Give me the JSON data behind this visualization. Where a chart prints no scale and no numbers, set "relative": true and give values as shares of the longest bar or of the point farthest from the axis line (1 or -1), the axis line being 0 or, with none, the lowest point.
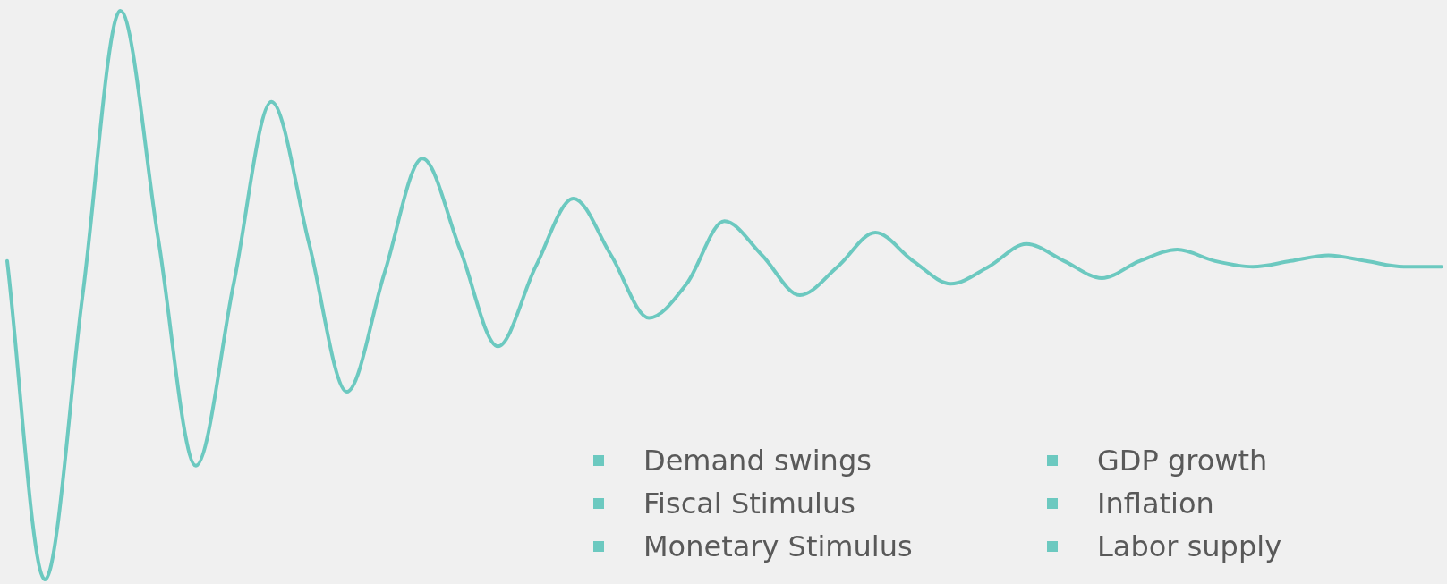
{
  "chart_data": {
    "type": "line",
    "relative": true,
    "legend": false,
    "marker": "none",
    "line_style": "solid",
    "categories": [
      null,
      null,
      null,
      null,
      null,
      null,
      null,
      null,
      null,
      null,
      null,
      null,
      null,
      null,
      null,
      null,
      null,
      null,
      null,
      null,
      null,
      null,
      null,
      null,
      null,
      null,
      null,
      null,
      null,
      null,
      null,
      null,
      null,
      null,
      null,
      null,
      null,
      null,
      null
    ],
    "series": [
      {
        "color": "#6cc9c0",
        "values": [
          0.56,
          0,
          0.5,
          1,
          0.6,
          0.2,
          0.52,
          0.84,
          0.59,
          0.33,
          0.54,
          0.74,
          0.58,
          0.41,
          0.55,
          0.67,
          0.57,
          0.46,
          0.52,
          0.63,
          0.57,
          0.5,
          0.55,
          0.61,
          0.56,
          0.52,
          0.55,
          0.59,
          0.56,
          0.53,
          0.56,
          0.58,
          0.56,
          0.55,
          0.56,
          0.57,
          0.56,
          0.55,
          0.55
        ]
      }
    ],
    "annotations": [
      "Demand swings",
      "Fiscal Stimulus",
      "Monetary Stimulus",
      "GDP growth",
      "Inflation",
      "Labor supply"
    ]
  }
}
